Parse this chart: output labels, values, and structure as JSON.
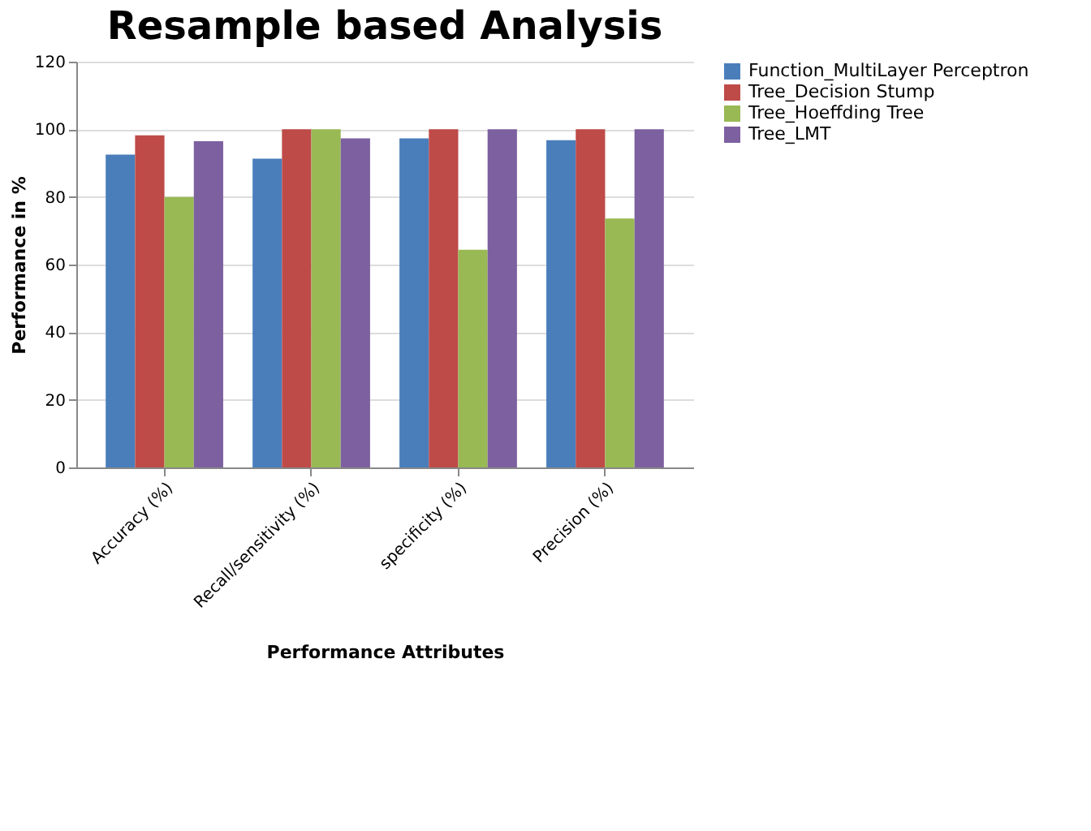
{
  "chart_data": {
    "type": "bar",
    "title": "Resample based Analysis",
    "xlabel": "Performance Attributes",
    "ylabel": "Performance in %",
    "categories": [
      "Accuracy (%)",
      "Recall/sensitivity (%)",
      "specificity (%)",
      "Precision (%)"
    ],
    "series": [
      {
        "name": "Function_MultiLayer Perceptron",
        "color": "#4a7ebb",
        "values": [
          92.5,
          91.3,
          97.3,
          96.8
        ]
      },
      {
        "name": "Tree_Decision Stump",
        "color": "#be4b48",
        "values": [
          98.2,
          100,
          100,
          100
        ]
      },
      {
        "name": "Tree_Hoeffding Tree",
        "color": "#98b954",
        "values": [
          80,
          100,
          64.4,
          73.6
        ]
      },
      {
        "name": "Tree_LMT",
        "color": "#7d60a0",
        "values": [
          96.5,
          97.3,
          100,
          100
        ]
      }
    ],
    "ylim": [
      0,
      120
    ],
    "yticks": [
      0,
      20,
      40,
      60,
      80,
      100,
      120
    ],
    "grid": "y",
    "legend": "right"
  }
}
